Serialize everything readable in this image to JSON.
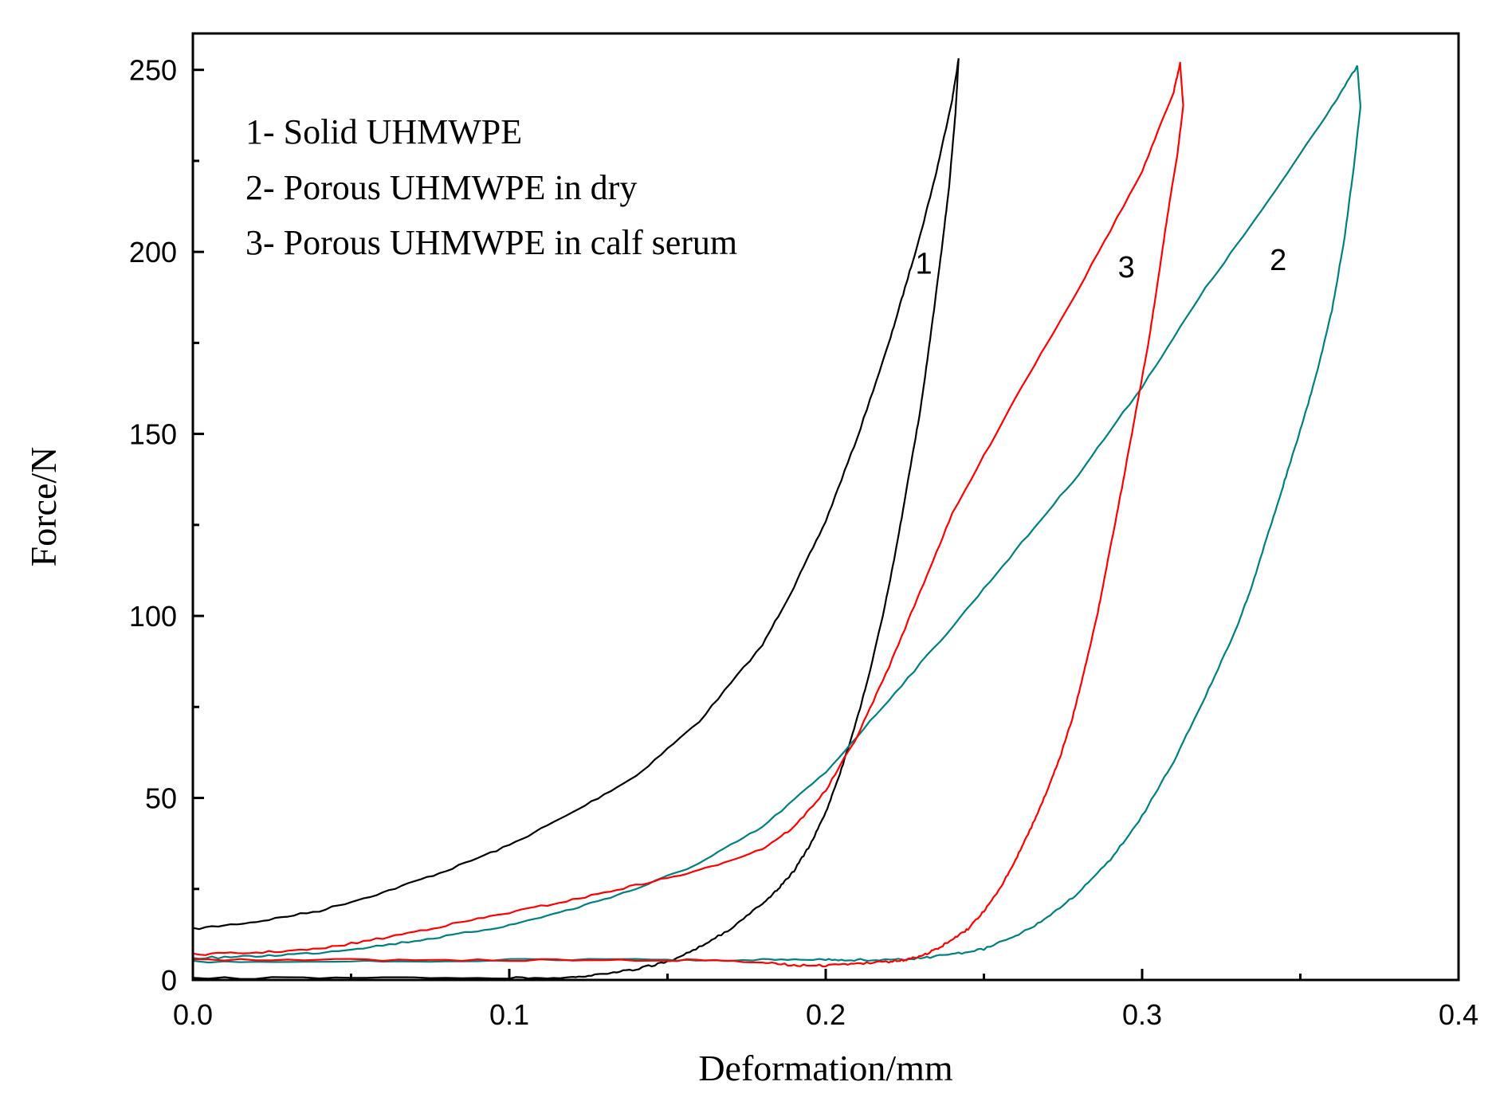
{
  "chart_data": {
    "type": "line",
    "title": "",
    "xlabel": "Deformation/mm",
    "ylabel": "Force/N",
    "xlim": [
      0.0,
      0.4
    ],
    "ylim": [
      0,
      260
    ],
    "x_ticks": [
      0.0,
      0.1,
      0.2,
      0.3,
      0.4
    ],
    "x_tick_labels": [
      "0.0",
      "0.1",
      "0.2",
      "0.3",
      "0.4"
    ],
    "x_minor_ticks": [
      0.05,
      0.15,
      0.25,
      0.35
    ],
    "y_ticks": [
      0,
      50,
      100,
      150,
      200,
      250
    ],
    "y_tick_labels": [
      "0",
      "50",
      "100",
      "150",
      "200",
      "250"
    ],
    "y_minor_ticks": [
      25,
      75,
      125,
      175,
      225
    ],
    "grid": false,
    "legend_position": "top-left",
    "legend": [
      "1- Solid UHMWPE",
      "2- Porous UHMWPE in dry",
      "3- Porous UHMWPE in calf serum"
    ],
    "series": [
      {
        "name": "1- Solid UHMWPE",
        "label": "1",
        "label_at": [
          0.231,
          194
        ],
        "color": "#000000",
        "loading": {
          "x": [
            0.0,
            0.02,
            0.04,
            0.06,
            0.08,
            0.1,
            0.12,
            0.14,
            0.16,
            0.18,
            0.19,
            0.2,
            0.21,
            0.22,
            0.225,
            0.23,
            0.235,
            0.24,
            0.242
          ],
          "y": [
            14,
            16,
            19,
            24,
            30,
            37,
            46,
            56,
            71,
            92,
            108,
            126,
            149,
            175,
            190,
            205,
            222,
            242,
            253
          ]
        },
        "unloading": {
          "x": [
            0.242,
            0.241,
            0.239,
            0.236,
            0.233,
            0.23,
            0.226,
            0.222,
            0.218,
            0.214,
            0.21,
            0.205,
            0.2,
            0.195,
            0.19,
            0.185,
            0.18,
            0.17,
            0.16,
            0.15,
            0.14,
            0.13,
            0.12,
            0.1,
            0.05,
            0.0
          ],
          "y": [
            253,
            238,
            218,
            196,
            176,
            157,
            137,
            117,
            100,
            85,
            72,
            58,
            46,
            37,
            30,
            25,
            21,
            14,
            9,
            5,
            3,
            1.5,
            0.8,
            0.5,
            0.5,
            0.5
          ]
        }
      },
      {
        "name": "2- Porous UHMWPE in dry",
        "label": "2",
        "label_at": [
          0.343,
          195
        ],
        "color": "#008080",
        "loading": {
          "x": [
            0.0,
            0.02,
            0.04,
            0.06,
            0.08,
            0.1,
            0.12,
            0.14,
            0.16,
            0.18,
            0.2,
            0.22,
            0.24,
            0.26,
            0.28,
            0.3,
            0.32,
            0.34,
            0.36,
            0.368
          ],
          "y": [
            6,
            6.5,
            7.5,
            9.5,
            12,
            15,
            19.5,
            25,
            32,
            42,
            57,
            77,
            97,
            118,
            139,
            163,
            190,
            214,
            240,
            251
          ]
        },
        "unloading": {
          "x": [
            0.368,
            0.369,
            0.367,
            0.364,
            0.36,
            0.355,
            0.35,
            0.345,
            0.34,
            0.335,
            0.33,
            0.32,
            0.31,
            0.3,
            0.29,
            0.28,
            0.27,
            0.26,
            0.25,
            0.24,
            0.23,
            0.22,
            0.21,
            0.2,
            0.18,
            0.15,
            0.1,
            0.05,
            0.0
          ],
          "y": [
            251,
            240,
            224,
            204,
            184,
            166,
            151,
            137,
            123,
            109,
            97,
            78,
            60,
            45,
            33,
            24,
            17,
            12,
            8.5,
            7,
            6,
            5.5,
            5.5,
            5.5,
            5.5,
            5.5,
            5.5,
            5,
            5
          ]
        }
      },
      {
        "name": "3- Porous UHMWPE in calf serum",
        "label": "3",
        "label_at": [
          0.295,
          193
        ],
        "color": "#ff0000",
        "loading": {
          "x": [
            0.0,
            0.02,
            0.04,
            0.06,
            0.08,
            0.1,
            0.12,
            0.14,
            0.16,
            0.18,
            0.19,
            0.2,
            0.21,
            0.22,
            0.23,
            0.24,
            0.26,
            0.28,
            0.3,
            0.31,
            0.312
          ],
          "y": [
            7,
            7.5,
            8.5,
            11.5,
            15,
            18.5,
            22,
            26,
            30,
            36,
            42,
            52,
            67,
            86,
            107,
            128,
            160,
            190,
            222,
            244,
            252
          ]
        },
        "unloading": {
          "x": [
            0.312,
            0.313,
            0.311,
            0.308,
            0.305,
            0.302,
            0.298,
            0.294,
            0.29,
            0.286,
            0.282,
            0.278,
            0.274,
            0.27,
            0.265,
            0.26,
            0.255,
            0.25,
            0.245,
            0.24,
            0.235,
            0.23,
            0.225,
            0.22,
            0.21,
            0.2,
            0.19,
            0.18,
            0.15,
            0.1,
            0.05,
            0.0
          ],
          "y": [
            252,
            240,
            226,
            210,
            192,
            175,
            156,
            137,
            119,
            101,
            86,
            72,
            61,
            52,
            42,
            33,
            25,
            19,
            14,
            11,
            8.5,
            6.5,
            5.5,
            5,
            4.5,
            4,
            4,
            5,
            5.5,
            5.5,
            5.5,
            5.5
          ]
        }
      }
    ]
  }
}
